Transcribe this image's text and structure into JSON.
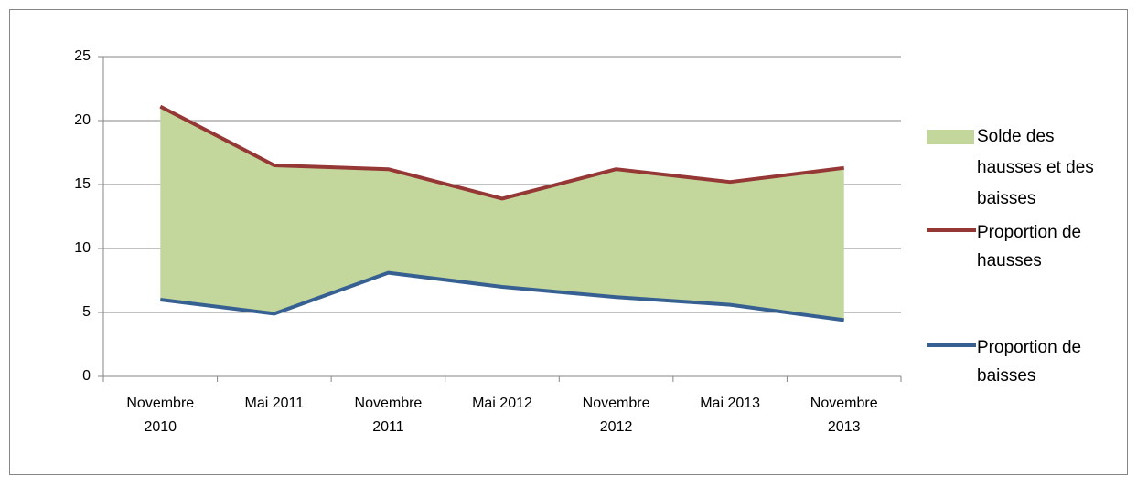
{
  "chart_data": {
    "type": "line",
    "categories": [
      "Novembre 2010",
      "Mai 2011",
      "Novembre 2011",
      "Mai 2012",
      "Novembre 2012",
      "Mai 2013",
      "Novembre 2013"
    ],
    "series": [
      {
        "name": "Solde des hausses et des baisses",
        "type": "area",
        "color": "#c3d69b",
        "values": [
          15.1,
          11.6,
          8.1,
          6.9,
          10.0,
          9.6,
          11.9
        ]
      },
      {
        "name": "Proportion de hausses",
        "type": "line",
        "color": "#953735",
        "values": [
          21.1,
          16.5,
          16.2,
          13.9,
          16.2,
          15.2,
          16.3
        ]
      },
      {
        "name": "Proportion de baisses",
        "type": "line",
        "color": "#376092",
        "values": [
          6.0,
          4.9,
          8.1,
          7.0,
          6.2,
          5.6,
          4.4
        ]
      }
    ],
    "ylim": [
      0,
      25
    ],
    "yticks": [
      0,
      5,
      10,
      15,
      20,
      25
    ],
    "grid": true,
    "legend": "right"
  }
}
